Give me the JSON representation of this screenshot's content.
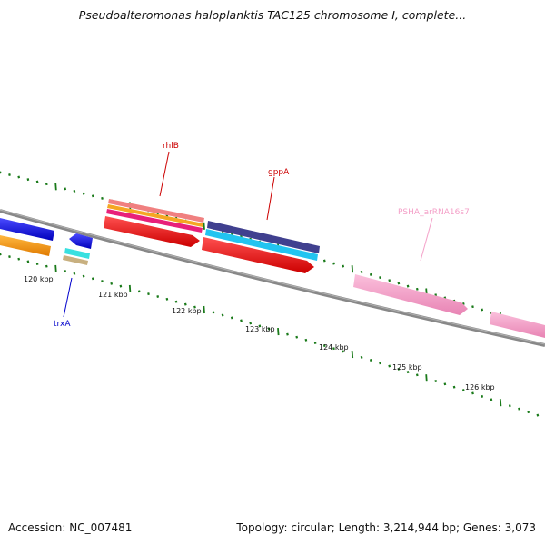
{
  "title": "Pseudoalteromonas haloplanktis TAC125 chromosome I, complete...",
  "footer": {
    "accession": "Accession: NC_007481",
    "stats": "Topology: circular; Length: 3,214,944 bp; Genes: 3,073"
  },
  "ticks": [
    "120 kbp",
    "121 kbp",
    "122 kbp",
    "123 kbp",
    "124 kbp",
    "125 kbp",
    "126 kbp"
  ],
  "genes": [
    {
      "label": "rhlB",
      "color": "#cc0000"
    },
    {
      "label": "gppA",
      "color": "#cc0000"
    },
    {
      "label": "PSHA_arRNA16s7",
      "color": "#f4a0c8"
    },
    {
      "label": "trxA",
      "color": "#0000cc"
    }
  ],
  "colors": {
    "backbone": "#808080",
    "tick_marks": "#1a7a1a",
    "red_feature": "#ee1111",
    "blue_feature": "#1111ee",
    "orange_feature": "#f39c12",
    "pink_feature": "#f4a0c8",
    "cyan_feature": "#2ec8f0",
    "navy_feature": "#3f3f8f"
  }
}
